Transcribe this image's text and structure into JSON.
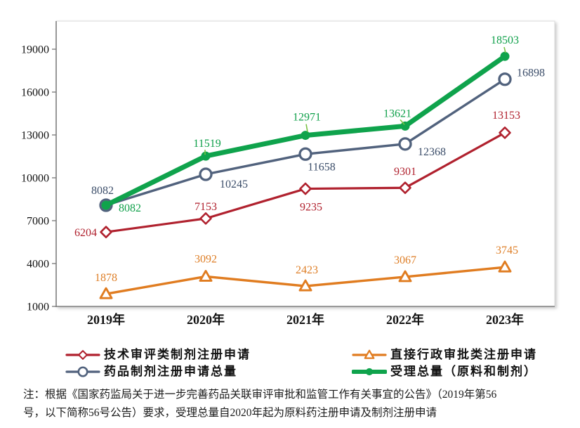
{
  "chart_data": {
    "type": "line",
    "categories": [
      "2019年",
      "2020年",
      "2021年",
      "2022年",
      "2023年"
    ],
    "series": [
      {
        "name": "技术审评类制剂注册申请",
        "values": [
          6204,
          7153,
          9235,
          9301,
          13153
        ],
        "color": "#b0212e",
        "label_color": "#b0212e",
        "marker": "diamond"
      },
      {
        "name": "直接行政审批类注册申请",
        "values": [
          1878,
          3092,
          2423,
          3067,
          3745
        ],
        "color": "#e07c20",
        "label_color": "#de7e26",
        "marker": "triangle"
      },
      {
        "name": "药品制剂注册申请总量",
        "values": [
          8082,
          10245,
          11658,
          12368,
          16898
        ],
        "color": "#51627d",
        "label_color": "#3b4d69",
        "marker": "circle-open"
      },
      {
        "name": "受理总量（原料和制剂）",
        "values": [
          8082,
          11519,
          12971,
          13621,
          18503
        ],
        "color": "#0fa34c",
        "label_color": "#0fa04a",
        "marker": "circle-filled"
      }
    ],
    "title": "",
    "xlabel": "",
    "ylabel": "",
    "ylim": [
      1000,
      19000
    ],
    "yticks": [
      1000,
      4000,
      7000,
      10000,
      13000,
      16000,
      19000
    ],
    "grid": false,
    "legend_position": "bottom",
    "axis_color": "#7f7f7f",
    "tick_label_color": "#111111"
  },
  "note": {
    "lines": [
      "注：根据《国家药监局关于进一步完善药品关联审评审批和监管工作有关事宜的公告》（2019年第56",
      "号，以下简称56号公告）要求，受理总量自2020年起为原料药注册申请及制剂注册申请"
    ]
  }
}
